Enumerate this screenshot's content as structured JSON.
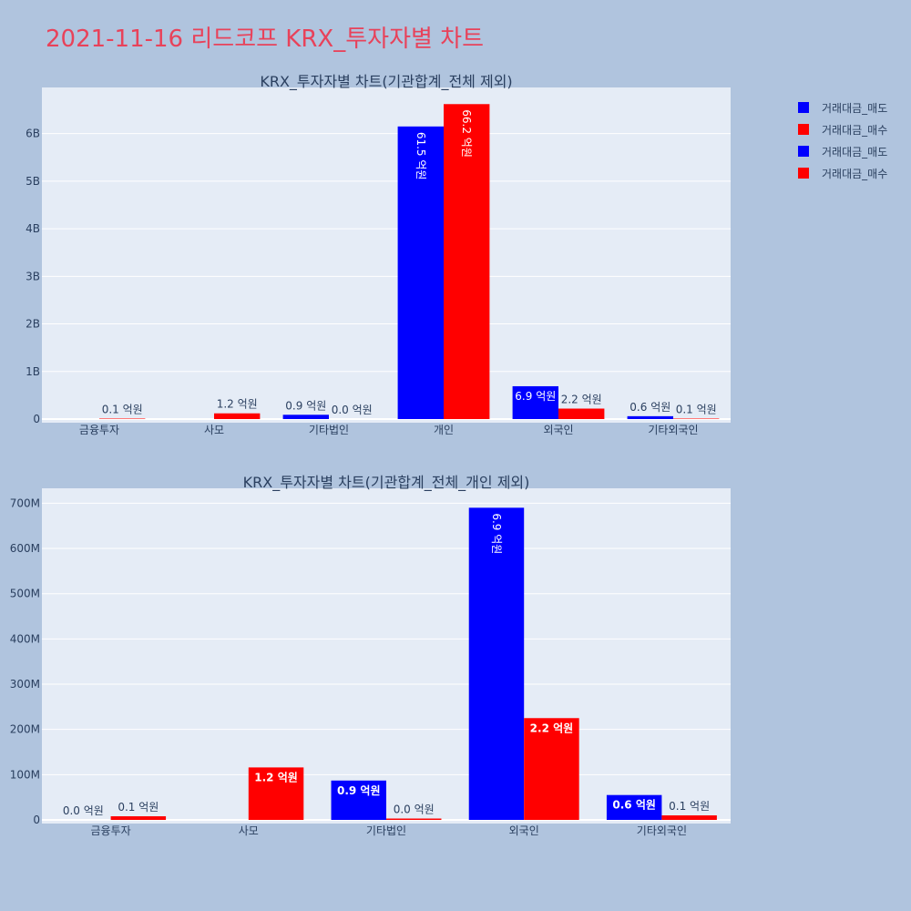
{
  "page_title": "2021-11-16 리드코프 KRX_투자자별 차트",
  "colors": {
    "sell": "#0000ff",
    "buy": "#ff0000",
    "plot_bg": "#e5ecf6",
    "page_bg": "#b0c4de",
    "title": "#e8425a"
  },
  "legend": [
    {
      "label": "거래대금_매도",
      "color": "#0000ff"
    },
    {
      "label": "거래대금_매수",
      "color": "#ff0000"
    },
    {
      "label": "거래대금_매도",
      "color": "#0000ff"
    },
    {
      "label": "거래대금_매수",
      "color": "#ff0000"
    }
  ],
  "chart_data": [
    {
      "type": "bar",
      "title": "KRX_투자자별 차트(기관합계_전체 제외)",
      "categories": [
        "금융투자",
        "사모",
        "기타법인",
        "개인",
        "외국인",
        "기타외국인"
      ],
      "series": [
        {
          "name": "거래대금_매도",
          "values": [
            0,
            0,
            90000000,
            6150000000,
            690000000,
            60000000
          ],
          "labels": [
            "",
            "",
            "0.9 억원",
            "61.5 억원",
            "6.9 억원",
            "0.6 억원"
          ]
        },
        {
          "name": "거래대금_매수",
          "values": [
            10000000,
            120000000,
            0,
            6620000000,
            220000000,
            10000000
          ],
          "labels": [
            "0.1 억원",
            "1.2 억원",
            "0.0 억원",
            "66.2 억원",
            "2.2 억원",
            "0.1 억원"
          ]
        }
      ],
      "yticks": [
        0,
        1000000000,
        2000000000,
        3000000000,
        4000000000,
        5000000000,
        6000000000
      ],
      "ytick_labels": [
        "0",
        "1B",
        "2B",
        "3B",
        "4B",
        "5B",
        "6B"
      ],
      "ylim": [
        0,
        6970000000
      ],
      "grid": true
    },
    {
      "type": "bar",
      "title": "KRX_투자자별 차트(기관합계_전체_개인 제외)",
      "categories": [
        "금융투자",
        "사모",
        "기타법인",
        "외국인",
        "기타외국인"
      ],
      "series": [
        {
          "name": "거래대금_매도",
          "values": [
            0,
            0,
            87000000,
            690000000,
            55000000
          ],
          "labels": [
            "0.0 억원",
            "",
            "0.9 억원",
            "6.9 억원",
            "0.6 억원"
          ]
        },
        {
          "name": "거래대금_매수",
          "values": [
            8000000,
            116000000,
            3000000,
            225000000,
            10000000
          ],
          "labels": [
            "0.1 억원",
            "1.2 억원",
            "0.0 억원",
            "2.2 억원",
            "0.1 억원"
          ]
        }
      ],
      "yticks": [
        0,
        100000000,
        200000000,
        300000000,
        400000000,
        500000000,
        600000000,
        700000000
      ],
      "ytick_labels": [
        "0",
        "100M",
        "200M",
        "300M",
        "400M",
        "500M",
        "600M",
        "700M"
      ],
      "ylim": [
        0,
        733000000
      ],
      "grid": true
    }
  ]
}
